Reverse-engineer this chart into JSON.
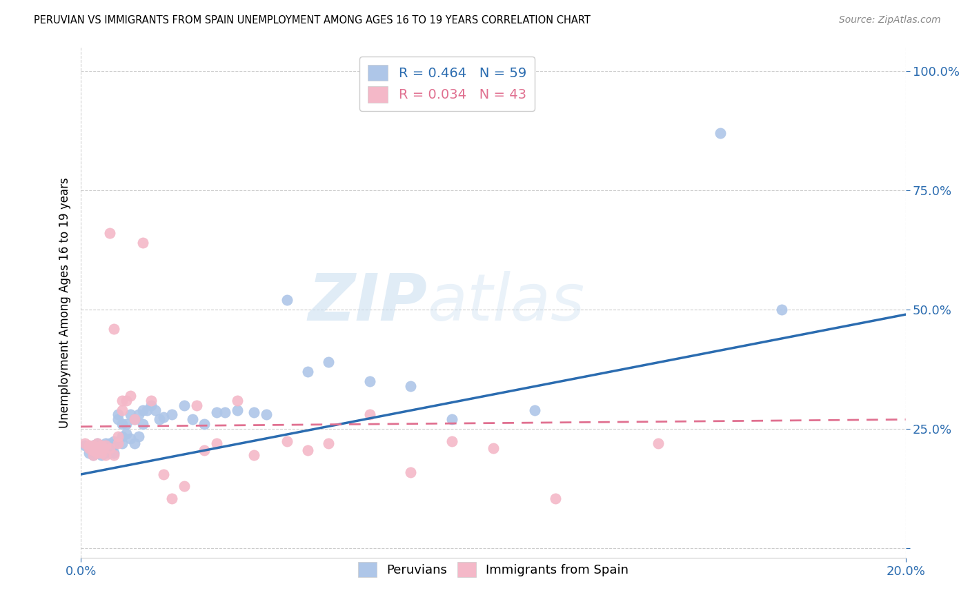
{
  "title": "PERUVIAN VS IMMIGRANTS FROM SPAIN UNEMPLOYMENT AMONG AGES 16 TO 19 YEARS CORRELATION CHART",
  "source": "Source: ZipAtlas.com",
  "ylabel": "Unemployment Among Ages 16 to 19 years",
  "xlim": [
    0.0,
    0.2
  ],
  "ylim": [
    -0.02,
    1.05
  ],
  "yticks": [
    0.0,
    0.25,
    0.5,
    0.75,
    1.0
  ],
  "yticklabels": [
    "",
    "25.0%",
    "50.0%",
    "75.0%",
    "100.0%"
  ],
  "xticks": [
    0.0,
    0.2
  ],
  "xticklabels": [
    "0.0%",
    "20.0%"
  ],
  "legend_r1": "R = 0.464   N = 59",
  "legend_r2": "R = 0.034   N = 43",
  "blue_color": "#aec6e8",
  "pink_color": "#f4b8c8",
  "blue_line_color": "#2b6cb0",
  "pink_line_color": "#e07090",
  "watermark": "ZIPatlas",
  "blue_line_x0": 0.0,
  "blue_line_y0": 0.155,
  "blue_line_x1": 0.2,
  "blue_line_y1": 0.49,
  "pink_line_x0": 0.0,
  "pink_line_y0": 0.255,
  "pink_line_x1": 0.2,
  "pink_line_y1": 0.27,
  "blue_points_x": [
    0.001,
    0.002,
    0.002,
    0.003,
    0.003,
    0.003,
    0.004,
    0.004,
    0.004,
    0.005,
    0.005,
    0.005,
    0.006,
    0.006,
    0.006,
    0.007,
    0.007,
    0.007,
    0.008,
    0.008,
    0.008,
    0.009,
    0.009,
    0.01,
    0.01,
    0.01,
    0.011,
    0.011,
    0.012,
    0.012,
    0.013,
    0.013,
    0.014,
    0.014,
    0.015,
    0.015,
    0.016,
    0.017,
    0.018,
    0.019,
    0.02,
    0.022,
    0.025,
    0.027,
    0.03,
    0.033,
    0.035,
    0.038,
    0.042,
    0.045,
    0.05,
    0.055,
    0.06,
    0.07,
    0.08,
    0.09,
    0.11,
    0.155,
    0.17
  ],
  "blue_points_y": [
    0.215,
    0.2,
    0.21,
    0.195,
    0.205,
    0.215,
    0.2,
    0.21,
    0.22,
    0.195,
    0.21,
    0.215,
    0.2,
    0.215,
    0.22,
    0.21,
    0.2,
    0.22,
    0.215,
    0.2,
    0.225,
    0.28,
    0.27,
    0.22,
    0.235,
    0.26,
    0.24,
    0.26,
    0.23,
    0.28,
    0.22,
    0.27,
    0.235,
    0.28,
    0.26,
    0.29,
    0.29,
    0.3,
    0.29,
    0.27,
    0.275,
    0.28,
    0.3,
    0.27,
    0.26,
    0.285,
    0.285,
    0.29,
    0.285,
    0.28,
    0.52,
    0.37,
    0.39,
    0.35,
    0.34,
    0.27,
    0.29,
    0.87,
    0.5
  ],
  "pink_points_x": [
    0.001,
    0.002,
    0.002,
    0.003,
    0.003,
    0.003,
    0.004,
    0.004,
    0.005,
    0.005,
    0.005,
    0.006,
    0.006,
    0.007,
    0.007,
    0.008,
    0.008,
    0.009,
    0.009,
    0.01,
    0.01,
    0.011,
    0.012,
    0.013,
    0.015,
    0.017,
    0.02,
    0.022,
    0.025,
    0.028,
    0.03,
    0.033,
    0.038,
    0.042,
    0.05,
    0.055,
    0.06,
    0.07,
    0.08,
    0.09,
    0.1,
    0.115,
    0.14
  ],
  "pink_points_y": [
    0.22,
    0.21,
    0.215,
    0.215,
    0.205,
    0.195,
    0.22,
    0.2,
    0.21,
    0.215,
    0.2,
    0.215,
    0.195,
    0.66,
    0.21,
    0.46,
    0.195,
    0.22,
    0.235,
    0.31,
    0.29,
    0.31,
    0.32,
    0.27,
    0.64,
    0.31,
    0.155,
    0.105,
    0.13,
    0.3,
    0.205,
    0.22,
    0.31,
    0.195,
    0.225,
    0.205,
    0.22,
    0.28,
    0.16,
    0.225,
    0.21,
    0.105,
    0.22
  ]
}
